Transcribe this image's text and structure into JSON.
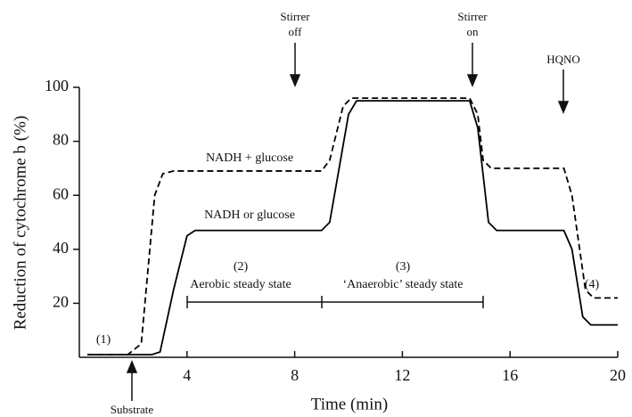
{
  "chart_data": {
    "type": "line",
    "xlabel": "Time (min)",
    "ylabel": "Reduction of cytochrome b (%)",
    "xlim": [
      0,
      20
    ],
    "xticks": [
      4,
      8,
      12,
      16,
      20
    ],
    "ylim": [
      0,
      100
    ],
    "yticks": [
      20,
      40,
      60,
      80,
      100
    ],
    "series": [
      {
        "name": "NADH + glucose",
        "color": "#000000",
        "style": "dashed",
        "x": [
          0.3,
          1.8,
          2.3,
          2.8,
          3.1,
          3.5,
          9,
          9.3,
          9.8,
          10.1,
          14.5,
          14.8,
          15,
          15.3,
          18,
          18.3,
          18.8,
          19.1,
          20
        ],
        "values": [
          1,
          1,
          5,
          60,
          68,
          69,
          69,
          73,
          93,
          96,
          96,
          90,
          73,
          70,
          70,
          60,
          25,
          22,
          22
        ]
      },
      {
        "name": "NADH or glucose",
        "color": "#000000",
        "style": "solid",
        "x": [
          0.3,
          2.7,
          3.0,
          3.5,
          4.0,
          4.3,
          9,
          9.3,
          10,
          10.3,
          14.5,
          14.8,
          15.2,
          15.5,
          18,
          18.3,
          18.7,
          19,
          20
        ],
        "values": [
          1,
          1,
          2,
          25,
          45,
          47,
          47,
          50,
          90,
          95,
          95,
          85,
          50,
          47,
          47,
          40,
          15,
          12,
          12
        ]
      }
    ],
    "annotations": {
      "stirrer_off": [
        "Stirrer",
        "off"
      ],
      "stirrer_on": [
        "Stirrer",
        "on"
      ],
      "hqno": "HQNO",
      "substrate": "Substrate",
      "phase1": "(1)",
      "phase2": [
        "(2)",
        "Aerobic steady state"
      ],
      "phase3": [
        "(3)",
        "‘Anaerobic’ steady state"
      ],
      "phase4": "(4)"
    }
  }
}
